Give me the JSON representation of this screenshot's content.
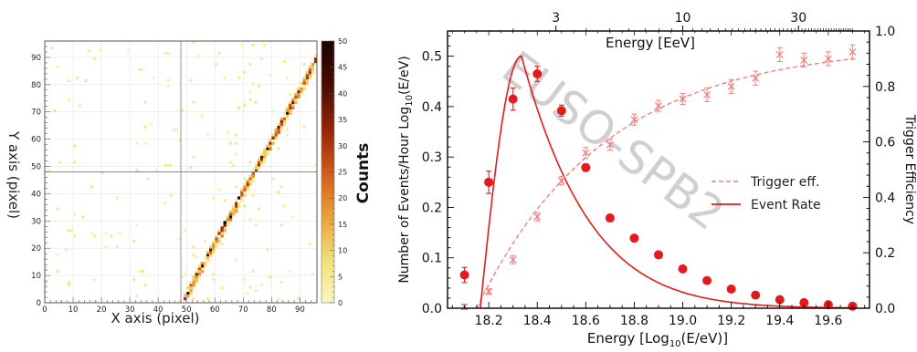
{
  "chart_data": [
    {
      "type": "heatmap",
      "xlabel": "X axis (pixel)",
      "ylabel": "Y axis (pixel)",
      "xlim": [
        0,
        96
      ],
      "ylim": [
        0,
        96
      ],
      "xticks": [
        0,
        10,
        20,
        30,
        40,
        50,
        60,
        70,
        80,
        90
      ],
      "yticks": [
        0,
        10,
        20,
        30,
        40,
        50,
        60,
        70,
        80,
        90
      ],
      "colorbar": {
        "label": "Counts",
        "range": [
          0,
          50
        ],
        "ticks": [
          0,
          5,
          10,
          15,
          20,
          25,
          30,
          35,
          40,
          45,
          50
        ],
        "colors": [
          "#f8f8c0",
          "#f2e07a",
          "#e8a23a",
          "#cf5a1a",
          "#962508",
          "#4a0b02",
          "#1a0200"
        ]
      },
      "crosshair": {
        "x": 48,
        "y": 48
      },
      "track": {
        "from": [
          48,
          0
        ],
        "to": [
          96,
          90
        ],
        "peak_counts": 50
      },
      "background_hits": "sparse, low counts (1-5)"
    },
    {
      "type": "line",
      "xlabel": "Energy [Log10(E/eV)]",
      "xlabel_parts": {
        "pre": "Energy [Log",
        "sub": "10",
        "post": "(E/eV)]"
      },
      "ylabel_parts": {
        "pre": "Number of Events/Hour Log",
        "sub": "10",
        "post": "(E/eV)"
      },
      "ylabel_right": "Trigger Efficiency",
      "xlabel_top": "Energy [EeV]",
      "xlim": [
        18.03,
        19.77
      ],
      "ylim": [
        0,
        0.55
      ],
      "ylim_right": [
        0,
        1.0
      ],
      "xticks": [
        "18.2",
        "18.4",
        "18.6",
        "18.8",
        "19.0",
        "19.2",
        "19.4",
        "19.6"
      ],
      "yticks": [
        "0.0",
        "0.1",
        "0.2",
        "0.3",
        "0.4",
        "0.5"
      ],
      "yticks_right": [
        "0.0",
        "0.2",
        "0.4",
        "0.6",
        "0.8",
        "1.0"
      ],
      "xticks_top": [
        {
          "label": "3",
          "eev": 3
        },
        {
          "label": "10",
          "eev": 10
        },
        {
          "label": "30",
          "eev": 30
        }
      ],
      "watermark": "EUSO-SPB2",
      "legend": {
        "position": "center-right",
        "entries": [
          "Trigger eff.",
          "Event Rate"
        ]
      },
      "series": [
        {
          "name": "Event Rate",
          "axis": "left",
          "color": "#e41a1c",
          "points": [
            {
              "x": 18.1,
              "y": 0.066,
              "err": 0.015
            },
            {
              "x": 18.2,
              "y": 0.25,
              "err": 0.022
            },
            {
              "x": 18.3,
              "y": 0.415,
              "err": 0.022
            },
            {
              "x": 18.4,
              "y": 0.465,
              "err": 0.015
            },
            {
              "x": 18.5,
              "y": 0.392,
              "err": 0.011
            },
            {
              "x": 18.6,
              "y": 0.279,
              "err": 0.007
            },
            {
              "x": 18.7,
              "y": 0.179,
              "err": 0.004
            },
            {
              "x": 18.8,
              "y": 0.139,
              "err": 0.003
            },
            {
              "x": 18.9,
              "y": 0.106,
              "err": 0.002
            },
            {
              "x": 19.0,
              "y": 0.078,
              "err": 0.002
            },
            {
              "x": 19.1,
              "y": 0.055,
              "err": 0.001
            },
            {
              "x": 19.2,
              "y": 0.038,
              "err": 0.001
            },
            {
              "x": 19.3,
              "y": 0.026,
              "err": 0.001
            },
            {
              "x": 19.4,
              "y": 0.017,
              "err": 0.001
            },
            {
              "x": 19.5,
              "y": 0.011,
              "err": 0.001
            },
            {
              "x": 19.6,
              "y": 0.007,
              "err": 0.001
            },
            {
              "x": 19.7,
              "y": 0.004,
              "err": 0.001
            }
          ],
          "fit": {
            "start": 18.165,
            "peak_x": 18.335,
            "peak_y": 0.5
          }
        },
        {
          "name": "Trigger eff.",
          "axis": "right",
          "color": "#f08080",
          "points": [
            {
              "x": 18.1,
              "y": 0.005,
              "err": 0.01
            },
            {
              "x": 18.2,
              "y": 0.06,
              "err": 0.01
            },
            {
              "x": 18.3,
              "y": 0.175,
              "err": 0.015
            },
            {
              "x": 18.4,
              "y": 0.33,
              "err": 0.015
            },
            {
              "x": 18.5,
              "y": 0.46,
              "err": 0.015
            },
            {
              "x": 18.6,
              "y": 0.56,
              "err": 0.02
            },
            {
              "x": 18.7,
              "y": 0.59,
              "err": 0.02
            },
            {
              "x": 18.8,
              "y": 0.68,
              "err": 0.02
            },
            {
              "x": 18.9,
              "y": 0.73,
              "err": 0.02
            },
            {
              "x": 19.0,
              "y": 0.755,
              "err": 0.02
            },
            {
              "x": 19.1,
              "y": 0.77,
              "err": 0.025
            },
            {
              "x": 19.2,
              "y": 0.8,
              "err": 0.025
            },
            {
              "x": 19.3,
              "y": 0.83,
              "err": 0.025
            },
            {
              "x": 19.4,
              "y": 0.915,
              "err": 0.025
            },
            {
              "x": 19.5,
              "y": 0.895,
              "err": 0.025
            },
            {
              "x": 19.6,
              "y": 0.9,
              "err": 0.025
            },
            {
              "x": 19.7,
              "y": 0.925,
              "err": 0.025
            }
          ],
          "fit": {
            "start": 18.15,
            "plateau": 0.95,
            "scale": 0.53
          }
        }
      ]
    }
  ]
}
